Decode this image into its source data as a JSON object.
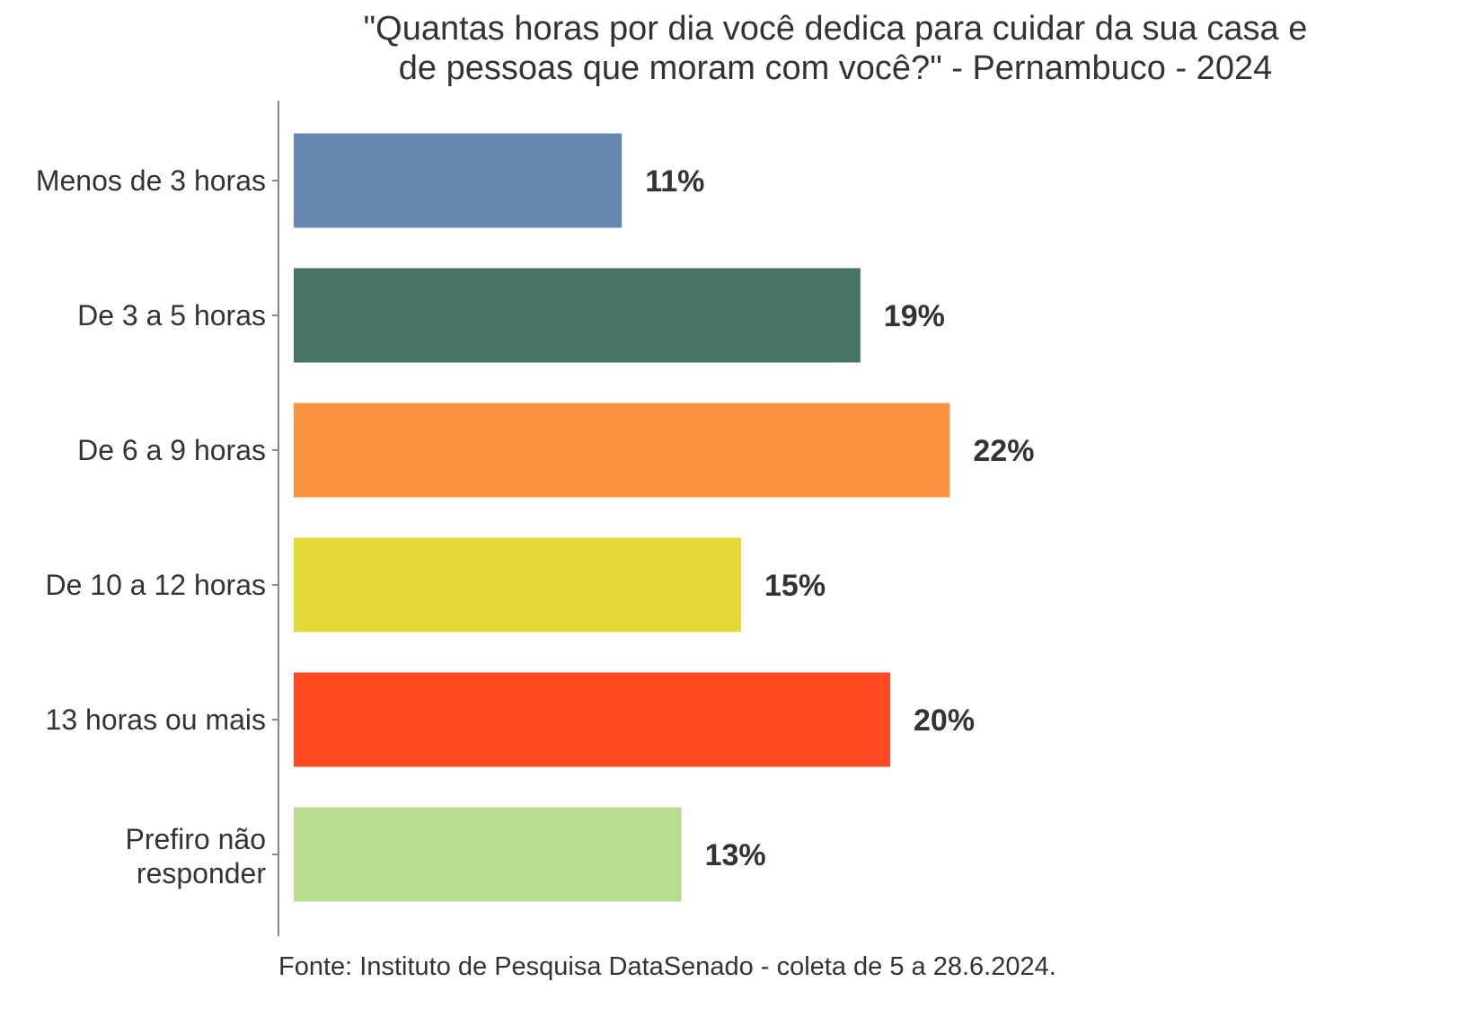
{
  "chart_data": {
    "type": "bar",
    "orientation": "horizontal",
    "title_lines": [
      "\"Quantas horas por dia você dedica para cuidar da sua casa e",
      "de pessoas que moram com você?\" - Pernambuco - 2024"
    ],
    "categories": [
      "Menos de 3 horas",
      "De 3 a 5 horas",
      "De 6 a 9 horas",
      "De 10 a 12 horas",
      "13 horas ou mais",
      [
        "Prefiro não",
        "responder"
      ]
    ],
    "values": [
      11,
      19,
      22,
      15,
      20,
      13
    ],
    "data_labels": [
      "11%",
      "19%",
      "22%",
      "15%",
      "20%",
      "13%"
    ],
    "colors": [
      "#6688b0",
      "#467563",
      "#fb923f",
      "#e5da35",
      "#ff4a22",
      "#b9dc90"
    ],
    "xlabel": "",
    "ylabel": "",
    "xlim": [
      0,
      22
    ],
    "grid": false,
    "legend": "none"
  },
  "footer": "Fonte: Instituto de Pesquisa DataSenado - coleta de 5 a 28.6.2024."
}
